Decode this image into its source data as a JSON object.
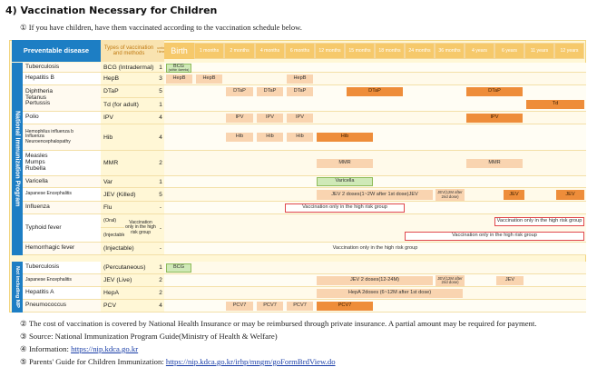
{
  "title": "4) Vaccination Necessary for Children",
  "lead": "① If you have children, have them vaccinated according to the vaccination schedule below.",
  "table": {
    "headers": {
      "disease": "Preventable disease",
      "vaccine": "Types of vaccination and methods",
      "doses": "Number of times",
      "ages": [
        "Birth",
        "1 months",
        "2 months",
        "4 months",
        "6 months",
        "12 months",
        "15 months",
        "18 months",
        "24 months",
        "36 months",
        "4 years",
        "6 years",
        "11 years",
        "12 years"
      ]
    },
    "section_nip": "National Immunization Program",
    "section_not_nip": "Not including NIP",
    "rows": [
      {
        "disease": "Tuberculosis",
        "vaccine": "BCG (Intradermal)",
        "doses": "1"
      },
      {
        "disease": "Hepatitis B",
        "vaccine": "HepB",
        "doses": "3"
      },
      {
        "disease_lines": [
          "Diphtheria",
          "Tetanus",
          "Pertussis"
        ],
        "vaccines": [
          "DTaP",
          "Td (for adult)"
        ],
        "doses": [
          "5",
          "1"
        ]
      },
      {
        "disease": "Polio",
        "vaccine": "IPV",
        "doses": "4"
      },
      {
        "disease_lines": [
          "Hemophilus influenza b",
          "Influenza",
          "Neuroencephalopathy"
        ],
        "vaccine": "Hib",
        "doses": "4"
      },
      {
        "disease_lines": [
          "Measles",
          "Mumps",
          "Rubella"
        ],
        "vaccine": "MMR",
        "doses": "2"
      },
      {
        "disease": "Varicella",
        "vaccine": "Var",
        "doses": "1"
      },
      {
        "disease": "Japanese Encephalitis",
        "vaccine": "JEV (Killed)",
        "doses": "5"
      },
      {
        "disease": "Influenza",
        "vaccine": "Flu",
        "doses": "-"
      },
      {
        "disease": "Typhoid fever",
        "vaccines": [
          "(Oral)",
          "(Injectable)"
        ],
        "note": "Vaccination only in the high risk group",
        "doses": "-"
      },
      {
        "disease": "Hemorrhagic fever",
        "vaccine": "(Injectable)",
        "doses": "-"
      },
      {
        "disease": "Tuberculosis",
        "vaccine": "(Percutaneous)",
        "doses": "1"
      },
      {
        "disease": "Japanese Encephalitis",
        "vaccine": "JEV (Live)",
        "doses": "2"
      },
      {
        "disease": "Hepatitis A",
        "vaccine": "HepA",
        "doses": "2"
      },
      {
        "disease": "Pneumococcus",
        "vaccine": "PCV",
        "doses": "4"
      }
    ],
    "bars": {
      "bcg": "BCG",
      "bcg_sub": "(within 4weeks)",
      "hepb": "HepB",
      "dtap": "DTaP",
      "td": "Td",
      "ipv": "IPV",
      "hib": "Hib",
      "mmr": "MMR",
      "varicella": "Varicella",
      "jev_killed_main": "JEV 2 doses(1~2W after 1st dose)JEV",
      "jev_12m": "JEV(12M after 2nd dose)",
      "jev": "JEV",
      "high_risk": "Vaccination only in the high risk group",
      "bcg_perc": "BCG",
      "jev_live_main": "JEV 2 doses(12-24M)",
      "hepa": "HepA 2doses (6~12M after 1st dose)",
      "pcv": "PCV7"
    }
  },
  "notes": [
    {
      "marker": "②",
      "text": "The cost of vaccination is covered by National Health Insurance or may be reimbursed through private insurance. A partial amount may be required for payment."
    },
    {
      "marker": "③",
      "text": "Source: National Immunization Program Guide(Ministry of Health & Welfare)"
    },
    {
      "marker": "④",
      "text": "Information:",
      "link": "https://nip.kdca.go.kr"
    },
    {
      "marker": "⑤",
      "text": "Parents' Guide for Children Immunization:",
      "link": "https://nip.kdca.go.kr/irhp/mngm/goFormBrdView.do"
    }
  ],
  "colors": {
    "header_blue": "#1d7ec4",
    "header_tan": "#f6c96b",
    "bar_dark": "#ee8d3a",
    "bar_light": "#f9d4b0",
    "bar_green": "#cfe9b7",
    "outline_red": "#e0474c"
  }
}
